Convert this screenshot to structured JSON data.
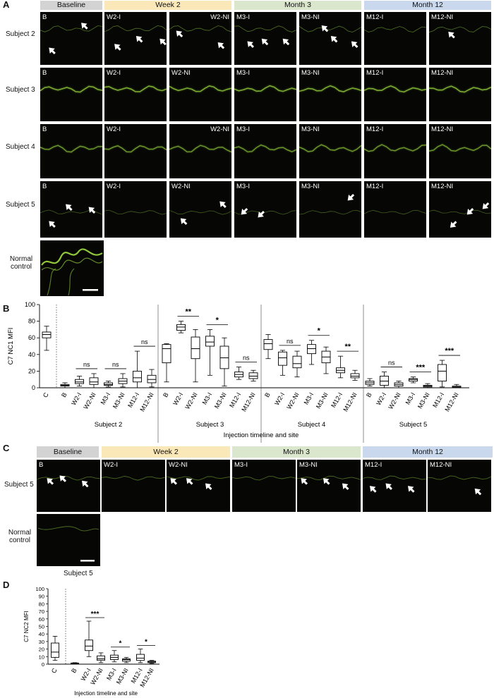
{
  "panel_labels": {
    "a": "A",
    "b": "B",
    "c": "C",
    "d": "D"
  },
  "colors": {
    "baseline": "#d3d3d3",
    "week2": "#fbe8b8",
    "month3": "#dbe7cc",
    "month12": "#c9d8ec",
    "fluorescence": "#8fc63a",
    "tile_bg": "#060704",
    "arrow": "#ffffff"
  },
  "panel_a": {
    "headers": [
      "Baseline",
      "Week 2",
      "Month 3",
      "Month 12"
    ],
    "rows": [
      {
        "label": "Subject 2",
        "tiles": [
          "B",
          "W2-I",
          "W2-NI",
          "M3-I",
          "M3-NI",
          "M12-I",
          "M12-NI"
        ]
      },
      {
        "label": "Subject 3",
        "tiles": [
          "B",
          "W2-I",
          "W2-NI",
          "M3-I",
          "M3-NI",
          "M12-I",
          "M12-NI"
        ]
      },
      {
        "label": "Subject 4",
        "tiles": [
          "B",
          "W2-I",
          "W2-NI",
          "M3-I",
          "M3-NI",
          "M12-I",
          "M12-NI"
        ]
      },
      {
        "label": "Subject 5",
        "tiles": [
          "B",
          "W2-I",
          "W2-NI",
          "M3-I",
          "M3-NI",
          "M12-I",
          "M12-NI"
        ]
      }
    ],
    "normal_control": "Normal\ncontrol"
  },
  "panel_c": {
    "headers": [
      "Baseline",
      "Week 2",
      "Month 3",
      "Month 12"
    ],
    "row_label": "Subject 5",
    "tiles": [
      "B",
      "W2-I",
      "W2-NI",
      "M3-I",
      "M3-NI",
      "M12-I",
      "M12-NI"
    ],
    "normal_control": "Normal\ncontrol",
    "caption": "Subject 5"
  },
  "chart_data": [
    {
      "type": "box",
      "ylabel": "C7 NC1 MFI",
      "xlabel": "Injection timeline and site",
      "ylim": [
        0,
        100
      ],
      "yticks": [
        0,
        20,
        40,
        60,
        80,
        100
      ],
      "groups": [
        {
          "name": "",
          "categories": [
            "C"
          ],
          "boxes": [
            {
              "min": 45,
              "q1": 60,
              "median": 64,
              "q3": 67,
              "max": 74
            }
          ],
          "comparisons": []
        },
        {
          "name": "Subject 2",
          "categories": [
            "B",
            "W2-I",
            "W2-NI",
            "M3-I",
            "M3-NI",
            "M12-I",
            "M12-NI"
          ],
          "boxes": [
            {
              "min": 0,
              "q1": 2,
              "median": 3,
              "q3": 4,
              "max": 6
            },
            {
              "min": 2,
              "q1": 5,
              "median": 7,
              "q3": 10,
              "max": 14
            },
            {
              "min": 0,
              "q1": 4,
              "median": 7,
              "q3": 12,
              "max": 17
            },
            {
              "min": 1,
              "q1": 3,
              "median": 4,
              "q3": 6,
              "max": 8
            },
            {
              "min": 1,
              "q1": 5,
              "median": 8,
              "q3": 11,
              "max": 17
            },
            {
              "min": 0,
              "q1": 7,
              "median": 12,
              "q3": 20,
              "max": 44
            },
            {
              "min": 1,
              "q1": 6,
              "median": 10,
              "q3": 15,
              "max": 22
            }
          ],
          "comparisons": [
            {
              "pair": [
                1,
                2
              ],
              "label": "ns"
            },
            {
              "pair": [
                3,
                4
              ],
              "label": "ns"
            },
            {
              "pair": [
                5,
                6
              ],
              "label": "ns"
            }
          ]
        },
        {
          "name": "Subject 3",
          "categories": [
            "B",
            "W2-I",
            "W2-NI",
            "M3-I",
            "M3-NI",
            "M12-I",
            "M12-NI"
          ],
          "boxes": [
            {
              "min": 7,
              "q1": 30,
              "median": 47,
              "q3": 52,
              "max": 53
            },
            {
              "min": 66,
              "q1": 69,
              "median": 73,
              "q3": 76,
              "max": 80
            },
            {
              "min": 7,
              "q1": 35,
              "median": 47,
              "q3": 61,
              "max": 70
            },
            {
              "min": 15,
              "q1": 50,
              "median": 55,
              "q3": 62,
              "max": 70
            },
            {
              "min": 2,
              "q1": 23,
              "median": 36,
              "q3": 50,
              "max": 60
            },
            {
              "min": 10,
              "q1": 13,
              "median": 16,
              "q3": 19,
              "max": 25
            },
            {
              "min": 8,
              "q1": 11,
              "median": 14,
              "q3": 18,
              "max": 21
            }
          ],
          "comparisons": [
            {
              "pair": [
                1,
                2
              ],
              "label": "**"
            },
            {
              "pair": [
                3,
                4
              ],
              "label": "*"
            },
            {
              "pair": [
                5,
                6
              ],
              "label": "ns"
            }
          ]
        },
        {
          "name": "Subject 4",
          "categories": [
            "B",
            "W2-I",
            "W2-NI",
            "M3-I",
            "M3-NI",
            "M12-I",
            "M12-NI"
          ],
          "boxes": [
            {
              "min": 35,
              "q1": 46,
              "median": 53,
              "q3": 58,
              "max": 64
            },
            {
              "min": 15,
              "q1": 27,
              "median": 36,
              "q3": 43,
              "max": 45
            },
            {
              "min": 13,
              "q1": 24,
              "median": 29,
              "q3": 38,
              "max": 44
            },
            {
              "min": 28,
              "q1": 41,
              "median": 47,
              "q3": 52,
              "max": 57
            },
            {
              "min": 17,
              "q1": 30,
              "median": 37,
              "q3": 44,
              "max": 49
            },
            {
              "min": 12,
              "q1": 18,
              "median": 21,
              "q3": 24,
              "max": 38
            },
            {
              "min": 9,
              "q1": 12,
              "median": 14,
              "q3": 17,
              "max": 21
            }
          ],
          "comparisons": [
            {
              "pair": [
                1,
                2
              ],
              "label": "ns"
            },
            {
              "pair": [
                3,
                4
              ],
              "label": "*"
            },
            {
              "pair": [
                5,
                6
              ],
              "label": "**"
            }
          ]
        },
        {
          "name": "Subject 5",
          "categories": [
            "B",
            "W2-I",
            "W2-NI",
            "M3-I",
            "M3-NI",
            "M12-I",
            "M12-NI"
          ],
          "boxes": [
            {
              "min": 2,
              "q1": 4,
              "median": 6,
              "q3": 8,
              "max": 11
            },
            {
              "min": 0,
              "q1": 3,
              "median": 8,
              "q3": 14,
              "max": 19
            },
            {
              "min": 0,
              "q1": 2,
              "median": 4,
              "q3": 6,
              "max": 8
            },
            {
              "min": 6,
              "q1": 8,
              "median": 10,
              "q3": 11,
              "max": 13
            },
            {
              "min": 0,
              "q1": 1,
              "median": 2,
              "q3": 3,
              "max": 5
            },
            {
              "min": 1,
              "q1": 8,
              "median": 20,
              "q3": 28,
              "max": 33
            },
            {
              "min": 0,
              "q1": 0.5,
              "median": 1,
              "q3": 2,
              "max": 4
            }
          ],
          "comparisons": [
            {
              "pair": [
                1,
                2
              ],
              "label": "ns"
            },
            {
              "pair": [
                3,
                4
              ],
              "label": "***"
            },
            {
              "pair": [
                5,
                6
              ],
              "label": "***"
            }
          ]
        }
      ]
    },
    {
      "type": "box",
      "ylabel": "C7 NC2 MFI",
      "xlabel": "Injection timeline and site",
      "ylim": [
        0,
        100
      ],
      "yticks": [
        0,
        10,
        20,
        30,
        40,
        50,
        60,
        70,
        80,
        90,
        100
      ],
      "categories": [
        "C",
        "B",
        "W2-I",
        "W2-NI",
        "M3-I",
        "M3-NI",
        "M12-I",
        "M12-NI"
      ],
      "boxes": [
        {
          "min": 5,
          "q1": 9,
          "median": 16,
          "q3": 28,
          "max": 37
        },
        {
          "min": 0,
          "q1": 0.5,
          "median": 1,
          "q3": 1.5,
          "max": 2
        },
        {
          "min": 10,
          "q1": 18,
          "median": 24,
          "q3": 32,
          "max": 57
        },
        {
          "min": 2,
          "q1": 5,
          "median": 7,
          "q3": 11,
          "max": 15
        },
        {
          "min": 3,
          "q1": 6,
          "median": 9,
          "q3": 12,
          "max": 18
        },
        {
          "min": 2,
          "q1": 4,
          "median": 6,
          "q3": 7,
          "max": 9
        },
        {
          "min": 2,
          "q1": 5,
          "median": 8,
          "q3": 13,
          "max": 20
        },
        {
          "min": 1,
          "q1": 2,
          "median": 3,
          "q3": 4,
          "max": 5
        }
      ],
      "comparisons": [
        {
          "pair": [
            2,
            3
          ],
          "label": "***"
        },
        {
          "pair": [
            4,
            5
          ],
          "label": "*"
        },
        {
          "pair": [
            6,
            7
          ],
          "label": "*"
        }
      ]
    }
  ]
}
